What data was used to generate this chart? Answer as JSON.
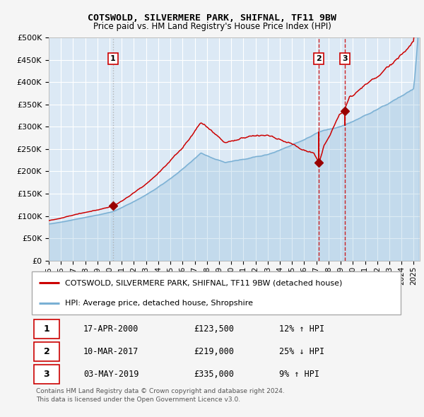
{
  "title": "COTSWOLD, SILVERMERE PARK, SHIFNAL, TF11 9BW",
  "subtitle": "Price paid vs. HM Land Registry's House Price Index (HPI)",
  "legend_line1": "COTSWOLD, SILVERMERE PARK, SHIFNAL, TF11 9BW (detached house)",
  "legend_line2": "HPI: Average price, detached house, Shropshire",
  "footer_line1": "Contains HM Land Registry data © Crown copyright and database right 2024.",
  "footer_line2": "This data is licensed under the Open Government Licence v3.0.",
  "transactions": [
    {
      "num": 1,
      "date": "17-APR-2000",
      "price": 123500,
      "hpi_rel": "12% ↑ HPI",
      "date_dec": 2000.29
    },
    {
      "num": 2,
      "date": "10-MAR-2017",
      "price": 219000,
      "hpi_rel": "25% ↓ HPI",
      "date_dec": 2017.19
    },
    {
      "num": 3,
      "date": "03-MAY-2019",
      "price": 335000,
      "hpi_rel": "9% ↑ HPI",
      "date_dec": 2019.34
    }
  ],
  "xmin": 1995.0,
  "xmax": 2025.5,
  "ymin": 0,
  "ymax": 500000,
  "yticks": [
    0,
    50000,
    100000,
    150000,
    200000,
    250000,
    300000,
    350000,
    400000,
    450000,
    500000
  ],
  "background_color": "#dce9f5",
  "grid_color": "#ffffff",
  "red_line_color": "#cc0000",
  "blue_line_color": "#7ab0d4",
  "vline1_color": "#aaaaaa",
  "vline23_color": "#cc0000",
  "marker_color": "#990000"
}
